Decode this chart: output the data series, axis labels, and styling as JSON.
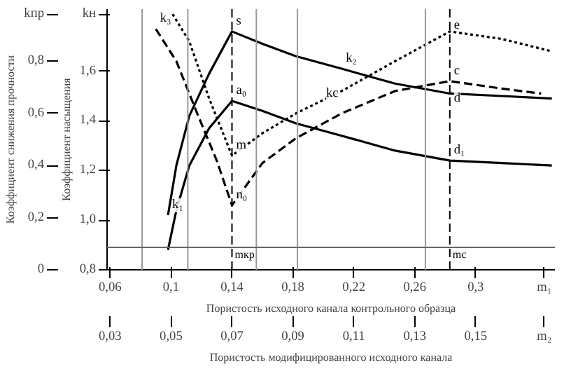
{
  "chart_data": {
    "type": "line",
    "xlabel": "Пористость исходного канала контрольного образца",
    "x2label": "Пористость модифицированного исходного канала",
    "ylabel": "Коэффициент насыщения",
    "y2label": "Коэффициент снижения прочности",
    "xlim": [
      0.058,
      0.352
    ],
    "xticks": [
      {
        "value": 0.06,
        "label": "0,06"
      },
      {
        "value": 0.1,
        "label": "0,1"
      },
      {
        "value": 0.14,
        "label": "0,14"
      },
      {
        "value": 0.18,
        "label": "0,18"
      },
      {
        "value": 0.22,
        "label": "0,22"
      },
      {
        "value": 0.26,
        "label": "0,26"
      },
      {
        "value": 0.3,
        "label": "0,3"
      },
      {
        "value": 0.345,
        "label": "m₁"
      }
    ],
    "x2lim": [
      0.029,
      0.176
    ],
    "x2ticks": [
      {
        "value": 0.03,
        "label": "0,03"
      },
      {
        "value": 0.05,
        "label": "0,05"
      },
      {
        "value": 0.07,
        "label": "0,07"
      },
      {
        "value": 0.09,
        "label": "0,09"
      },
      {
        "value": 0.11,
        "label": "0,11"
      },
      {
        "value": 0.13,
        "label": "0,13"
      },
      {
        "value": 0.15,
        "label": "0,15"
      },
      {
        "value": 0.1725,
        "label": "m₂"
      }
    ],
    "ylim": [
      0.8,
      1.85
    ],
    "yticks": [
      {
        "value": 0.8,
        "label": "0,8"
      },
      {
        "value": 1.0,
        "label": "1,0"
      },
      {
        "value": 1.2,
        "label": "1,2"
      },
      {
        "value": 1.4,
        "label": "1,4"
      },
      {
        "value": 1.6,
        "label": "1,6"
      },
      {
        "value": 1.83,
        "label": "kн"
      }
    ],
    "y2lim": [
      0,
      1.0
    ],
    "y2ticks": [
      {
        "value": 0,
        "label": "0"
      },
      {
        "value": 0.2,
        "label": "0,2"
      },
      {
        "value": 0.4,
        "label": "0,4"
      },
      {
        "value": 0.6,
        "label": "0,6"
      },
      {
        "value": 0.8,
        "label": "0,8"
      },
      {
        "value": 0.98,
        "label": "kпр"
      }
    ],
    "series": [
      {
        "color": "#000000",
        "line_style": "solid",
        "x": [
          0.098,
          0.1035,
          0.112,
          0.125,
          0.14,
          0.16,
          0.182,
          0.212,
          0.247,
          0.283,
          0.317,
          0.35
        ],
        "values": [
          1.02,
          1.22,
          1.42,
          1.59,
          1.76,
          1.71,
          1.66,
          1.61,
          1.55,
          1.51,
          1.5,
          1.49
        ]
      },
      {
        "color": "#000000",
        "line_style": "solid",
        "x": [
          0.098,
          0.1035,
          0.112,
          0.125,
          0.14,
          0.16,
          0.182,
          0.212,
          0.247,
          0.283,
          0.317,
          0.35
        ],
        "values": [
          0.88,
          1.04,
          1.22,
          1.37,
          1.48,
          1.44,
          1.39,
          1.34,
          1.28,
          1.24,
          1.23,
          1.22
        ]
      },
      {
        "color": "#000000",
        "line_style": "dotted",
        "x": [
          0.101,
          0.112,
          0.125,
          0.14,
          0.16,
          0.182,
          0.212,
          0.247,
          0.283,
          0.317,
          0.35
        ],
        "values": [
          1.83,
          1.72,
          1.49,
          1.26,
          1.35,
          1.43,
          1.52,
          1.64,
          1.76,
          1.73,
          1.68
        ]
      },
      {
        "color": "#000000",
        "line_style": "dashed",
        "x": [
          0.09,
          0.1035,
          0.1165,
          0.13,
          0.14,
          0.16,
          0.182,
          0.212,
          0.247,
          0.283,
          0.317,
          0.343
        ],
        "values": [
          1.77,
          1.64,
          1.44,
          1.24,
          1.06,
          1.23,
          1.33,
          1.43,
          1.52,
          1.56,
          1.53,
          1.51
        ]
      }
    ],
    "ref_lines": [
      {
        "axis": "x",
        "value": 0.081,
        "color": "#999999",
        "line_style": "solid"
      },
      {
        "axis": "x",
        "value": 0.111,
        "color": "#999999",
        "line_style": "solid"
      },
      {
        "axis": "x",
        "value": 0.156,
        "color": "#999999",
        "line_style": "solid"
      },
      {
        "axis": "x",
        "value": 0.183,
        "color": "#999999",
        "line_style": "solid"
      },
      {
        "axis": "x",
        "value": 0.267,
        "color": "#999999",
        "line_style": "solid"
      },
      {
        "axis": "y",
        "value": 0.89,
        "color": "#666666",
        "line_style": "solid"
      },
      {
        "axis": "x",
        "value": 0.14,
        "label": "mкр",
        "color": "#000000",
        "line_style": "dashed"
      },
      {
        "axis": "x",
        "value": 0.283,
        "label": "mс",
        "color": "#000000",
        "line_style": "dashed"
      }
    ],
    "annotations": [
      {
        "text": "s",
        "x": 0.14,
        "y": 1.76
      },
      {
        "text": "a₀",
        "x": 0.14,
        "y": 1.48
      },
      {
        "text": "m",
        "x": 0.14,
        "y": 1.26
      },
      {
        "text": "n₀",
        "x": 0.14,
        "y": 1.06
      },
      {
        "text": "e",
        "x": 0.283,
        "y": 1.76
      },
      {
        "text": "c",
        "x": 0.283,
        "y": 1.56
      },
      {
        "text": "d",
        "x": 0.283,
        "y": 1.45
      },
      {
        "text": "d₁",
        "x": 0.283,
        "y": 1.24
      },
      {
        "text": "k₁",
        "x": 0.098,
        "y": 1.02
      },
      {
        "text": "k₂",
        "x": 0.212,
        "y": 1.61
      },
      {
        "text": "kс",
        "x": 0.199,
        "y": 1.47
      },
      {
        "text": "k₃",
        "x": 0.09,
        "y": 1.77
      }
    ]
  }
}
